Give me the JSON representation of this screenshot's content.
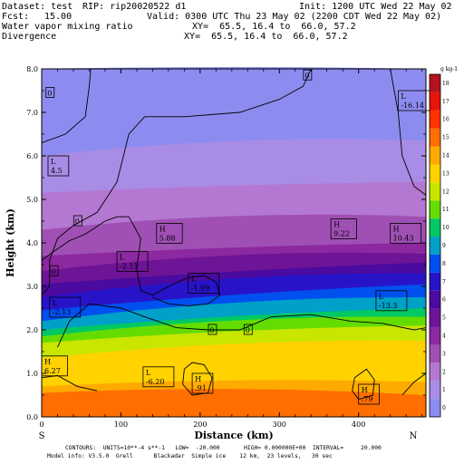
{
  "header": {
    "dataset": "Dataset: test",
    "rip": "RIP: rip20020522 d1",
    "init": "Init: 1200 UTC Wed 22 May 02",
    "fcst_label": "Fcst:",
    "fcst_value": "15.00",
    "valid": "Valid: 0300 UTC Thu 23 May 02 (2200 CDT Wed 22 May 02)",
    "field1": "Water vapor mixing ratio",
    "field1_xy": "XY=  65.5, 16.4 to  66.0, 57.2",
    "field2": "Divergence",
    "field2_xy": "XY=  65.5, 16.4 to  66.0, 57.2"
  },
  "footer": {
    "line1": "CONTOURS:  UNITS=10**-4 s**-1   LOW=  -20.000       HIGH= 0.000000E+00  INTERVAL=     20.000",
    "line2": "Model info: V3.5.0  Grell      Blackadar  Simple ice    12 km,  23 levels,   30 sec"
  },
  "chart_data": {
    "type": "cross-section (filled contour + line contour)",
    "xlabel": "Distance (km)",
    "ylabel": "Height (km)",
    "xlim": [
      0,
      485
    ],
    "ylim": [
      0,
      8
    ],
    "x_ticks": [
      0,
      100,
      200,
      300,
      400
    ],
    "y_ticks": [
      "0.0",
      "1.0",
      "2.0",
      "3.0",
      "4.0",
      "5.0",
      "6.0",
      "7.0",
      "8.0"
    ],
    "x_endpoints": {
      "left": "S",
      "right": "N"
    },
    "colorbar": {
      "units": "g kg-1",
      "levels": [
        "0",
        "1",
        "2",
        "3",
        "4",
        "5",
        "6",
        "7",
        "8",
        "9",
        "10",
        "11",
        "12",
        "13",
        "14",
        "15",
        "16",
        "17",
        "18"
      ],
      "colors": [
        "#8c8cf0",
        "#a88ce6",
        "#b478d2",
        "#a050b4",
        "#8c28a0",
        "#6e1496",
        "#4b0aa0",
        "#2814c8",
        "#0050f0",
        "#00a0c8",
        "#00c864",
        "#64dc00",
        "#c8e600",
        "#ffd200",
        "#ffaa00",
        "#ff6e00",
        "#ff3200",
        "#e6140a",
        "#b4141e"
      ]
    },
    "bands": [
      {
        "level": 0,
        "top_km_left": 8.0,
        "top_km_right": 8.0
      },
      {
        "level": 1,
        "top_km_left": 6.0,
        "top_km_right": 6.35
      },
      {
        "level": 2,
        "top_km_left": 5.15,
        "top_km_right": 5.4
      },
      {
        "level": 3,
        "top_km_left": 4.3,
        "top_km_right": 4.6
      },
      {
        "level": 4,
        "top_km_left": 3.7,
        "top_km_right": 4.0
      },
      {
        "level": 5,
        "top_km_left": 3.35,
        "top_km_right": 3.75
      },
      {
        "level": 6,
        "top_km_left": 3.05,
        "top_km_right": 3.55
      },
      {
        "level": 7,
        "top_km_left": 2.75,
        "top_km_right": 3.3
      },
      {
        "level": 8,
        "top_km_left": 2.45,
        "top_km_right": 3.05
      },
      {
        "level": 9,
        "top_km_left": 2.2,
        "top_km_right": 2.75
      },
      {
        "level": 10,
        "top_km_left": 2.0,
        "top_km_right": 2.5
      },
      {
        "level": 11,
        "top_km_left": 1.85,
        "top_km_right": 2.3
      },
      {
        "level": 12,
        "top_km_left": 1.7,
        "top_km_right": 2.1
      },
      {
        "level": 13,
        "top_km_left": 1.35,
        "top_km_right": 1.75
      },
      {
        "level": 14,
        "top_km_left": 0.7,
        "top_km_right": 0.8
      },
      {
        "level": 15,
        "top_km_left": 0.55,
        "top_km_right": 0.5
      }
    ],
    "annotations": [
      {
        "kind": "L",
        "value": "-16.14",
        "x": 450,
        "y": 7.25
      },
      {
        "kind": "L",
        "value": "4.5",
        "x": 8,
        "y": 5.75
      },
      {
        "kind": "H",
        "value": "5.88",
        "x": 145,
        "y": 4.2
      },
      {
        "kind": "H",
        "value": "9.22",
        "x": 365,
        "y": 4.3
      },
      {
        "kind": "H",
        "value": "10.43",
        "x": 440,
        "y": 4.2
      },
      {
        "kind": "L",
        "value": "-2.11",
        "x": 95,
        "y": 3.55
      },
      {
        "kind": "L",
        "value": "-1.99",
        "x": 185,
        "y": 3.05
      },
      {
        "kind": "L",
        "value": "-2.13",
        "x": 10,
        "y": 2.5
      },
      {
        "kind": "L",
        "value": "-13.3",
        "x": 422,
        "y": 2.65
      },
      {
        "kind": "H",
        "value": "6.27",
        "x": 0,
        "y": 1.15
      },
      {
        "kind": "L",
        "value": "-6.20",
        "x": 128,
        "y": 0.9
      },
      {
        "kind": "H",
        "value": ".91",
        "x": 190,
        "y": 0.75
      },
      {
        "kind": "H",
        "value": ".79",
        "x": 400,
        "y": 0.5
      }
    ],
    "zero_labels": [
      {
        "value": "0",
        "x": 10,
        "y": 7.45
      },
      {
        "value": "0",
        "x": 335,
        "y": 7.85
      },
      {
        "value": "0",
        "x": 45,
        "y": 4.5
      },
      {
        "value": "0",
        "x": 15,
        "y": 3.35
      },
      {
        "value": "0",
        "x": 215,
        "y": 2.0
      },
      {
        "value": "0",
        "x": 260,
        "y": 2.0
      }
    ],
    "zero_contours": [
      [
        [
          0,
          6.3
        ],
        [
          30,
          6.5
        ],
        [
          55,
          6.9
        ],
        [
          60,
          7.6
        ],
        [
          62,
          8.0
        ]
      ],
      [
        [
          340,
          8.0
        ],
        [
          330,
          7.6
        ],
        [
          300,
          7.3
        ],
        [
          250,
          7.0
        ],
        [
          180,
          6.9
        ],
        [
          130,
          6.9
        ],
        [
          110,
          6.5
        ],
        [
          95,
          5.4
        ],
        [
          70,
          4.7
        ],
        [
          40,
          4.4
        ],
        [
          20,
          4.1
        ],
        [
          10,
          3.6
        ],
        [
          10,
          3.0
        ],
        [
          0,
          2.8
        ]
      ],
      [
        [
          20,
          1.6
        ],
        [
          35,
          2.2
        ],
        [
          60,
          2.6
        ],
        [
          100,
          2.5
        ],
        [
          130,
          2.3
        ],
        [
          170,
          2.05
        ],
        [
          210,
          2.0
        ],
        [
          250,
          2.0
        ],
        [
          290,
          2.3
        ],
        [
          340,
          2.35
        ],
        [
          390,
          2.2
        ],
        [
          430,
          2.15
        ],
        [
          470,
          2.0
        ],
        [
          485,
          2.05
        ]
      ],
      [
        [
          0,
          3.6
        ],
        [
          15,
          3.8
        ],
        [
          35,
          4.05
        ],
        [
          55,
          4.2
        ],
        [
          80,
          4.5
        ],
        [
          95,
          4.6
        ]
      ],
      [
        [
          95,
          4.6
        ],
        [
          110,
          4.6
        ],
        [
          125,
          4.1
        ],
        [
          120,
          3.4
        ],
        [
          125,
          2.9
        ],
        [
          140,
          2.8
        ],
        [
          160,
          3.0
        ],
        [
          185,
          3.2
        ],
        [
          205,
          3.25
        ],
        [
          220,
          3.1
        ],
        [
          225,
          2.8
        ],
        [
          210,
          2.6
        ],
        [
          185,
          2.55
        ],
        [
          160,
          2.6
        ],
        [
          140,
          2.75
        ]
      ],
      [
        [
          440,
          8.0
        ],
        [
          445,
          7.5
        ],
        [
          450,
          7.0
        ],
        [
          455,
          6.0
        ],
        [
          470,
          5.3
        ],
        [
          485,
          5.1
        ]
      ],
      [
        [
          180,
          1.1
        ],
        [
          190,
          1.25
        ],
        [
          205,
          1.2
        ],
        [
          215,
          0.9
        ],
        [
          210,
          0.55
        ],
        [
          190,
          0.5
        ],
        [
          178,
          0.75
        ],
        [
          180,
          1.1
        ]
      ],
      [
        [
          395,
          0.9
        ],
        [
          410,
          1.1
        ],
        [
          420,
          0.85
        ],
        [
          418,
          0.5
        ],
        [
          400,
          0.4
        ],
        [
          392,
          0.6
        ],
        [
          395,
          0.9
        ]
      ],
      [
        [
          0,
          0.9
        ],
        [
          20,
          0.95
        ],
        [
          45,
          0.7
        ],
        [
          70,
          0.6
        ]
      ],
      [
        [
          455,
          0.5
        ],
        [
          470,
          0.8
        ],
        [
          485,
          1.0
        ]
      ]
    ]
  }
}
